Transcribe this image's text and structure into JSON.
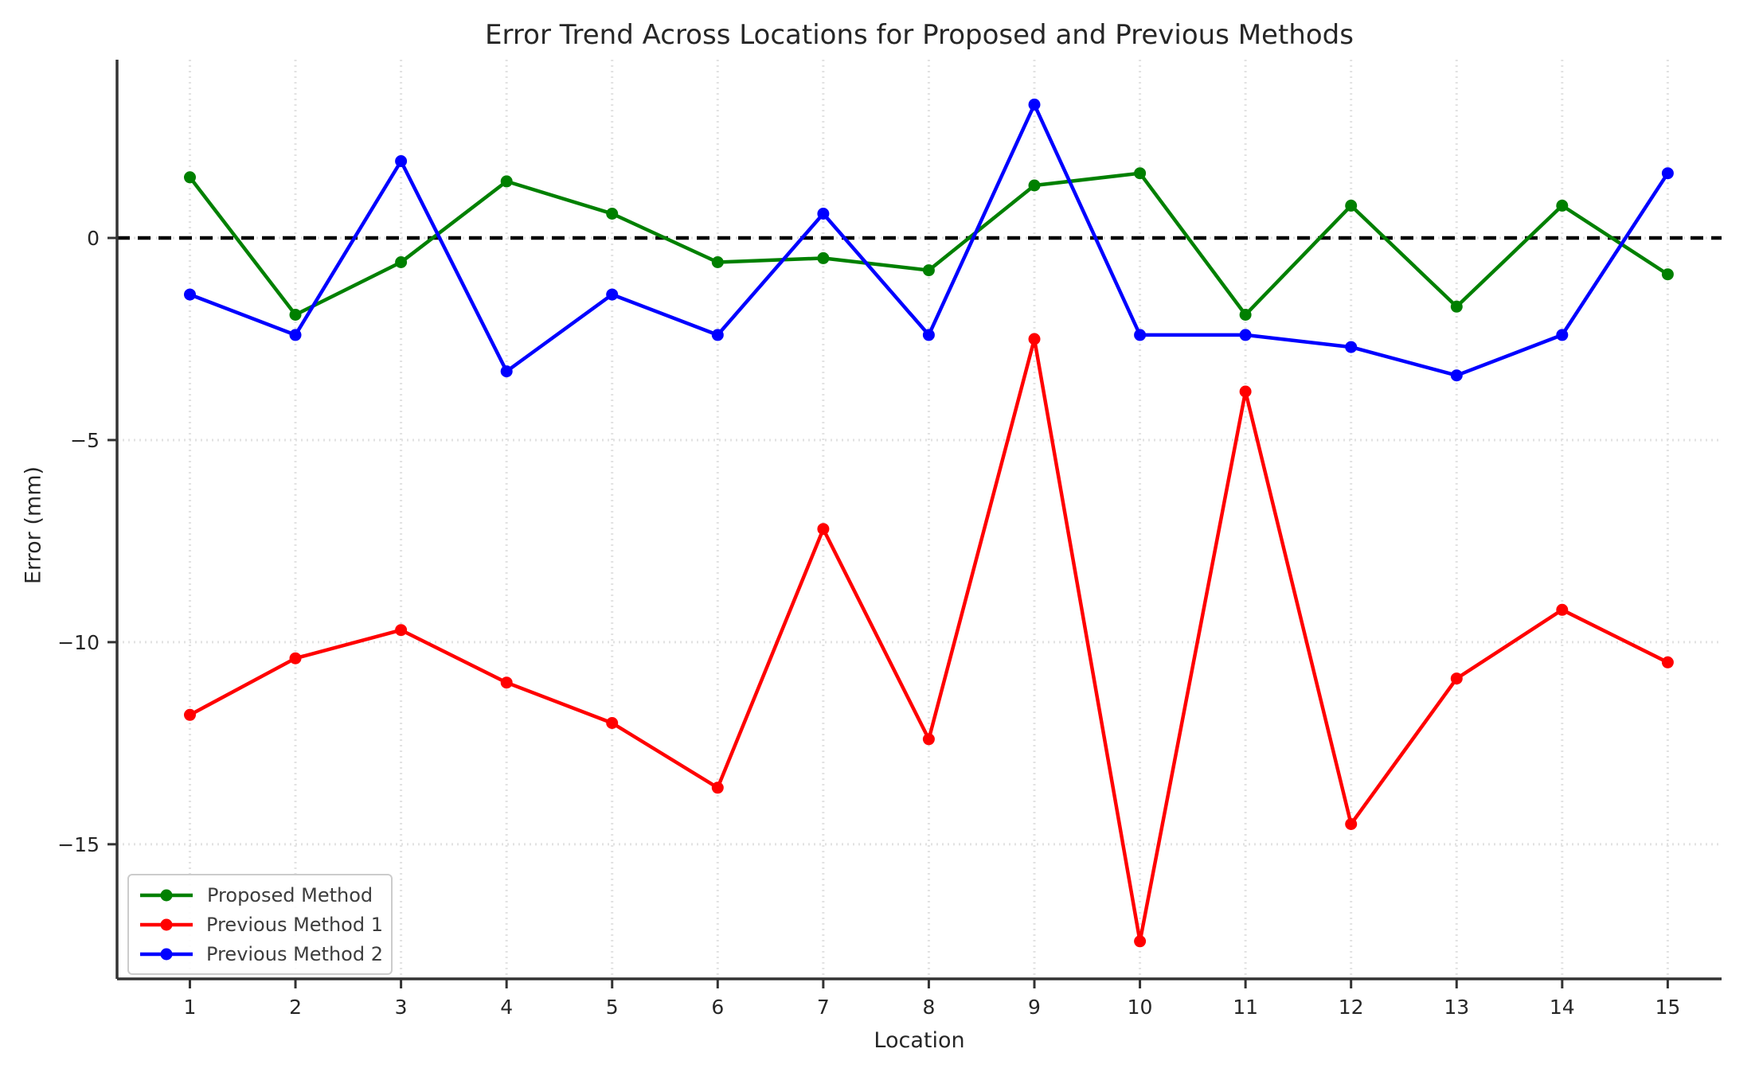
{
  "chart_data": {
    "type": "line",
    "title": "Error Trend Across Locations for Proposed and Previous Methods",
    "xlabel": "Location",
    "ylabel": "Error (mm)",
    "x": [
      1,
      2,
      3,
      4,
      5,
      6,
      7,
      8,
      9,
      10,
      11,
      12,
      13,
      14,
      15
    ],
    "xtick_labels": [
      "1",
      "2",
      "3",
      "4",
      "5",
      "6",
      "7",
      "8",
      "9",
      "10",
      "11",
      "12",
      "13",
      "14",
      "15"
    ],
    "ytick_values": [
      0,
      -5,
      -10,
      -15
    ],
    "ytick_labels": [
      "0",
      "−5",
      "−10",
      "−15"
    ],
    "xlim": [
      0.31,
      15.51
    ],
    "ylim": [
      -18.33,
      4.41
    ],
    "grid": true,
    "legend_position": "lower left",
    "zero_line": {
      "value": 0,
      "style": "dashed",
      "color": "#000000"
    },
    "series": [
      {
        "name": "Proposed Method",
        "color": "#008000",
        "marker": "circle",
        "values": [
          1.5,
          -1.9,
          -0.6,
          1.4,
          0.6,
          -0.6,
          -0.5,
          -0.8,
          1.3,
          1.6,
          -1.9,
          0.8,
          -1.7,
          0.8,
          -0.9
        ]
      },
      {
        "name": "Previous Method 1",
        "color": "#ff0000",
        "marker": "circle",
        "values": [
          -11.8,
          -10.4,
          -9.7,
          -11.0,
          -12.0,
          -13.6,
          -7.2,
          -12.4,
          -2.5,
          -17.4,
          -3.8,
          -14.5,
          -10.9,
          -9.2,
          -10.5
        ]
      },
      {
        "name": "Previous Method 2",
        "color": "#0000ff",
        "marker": "circle",
        "values": [
          -1.4,
          -2.4,
          1.9,
          -3.3,
          -1.4,
          -2.4,
          0.6,
          -2.4,
          3.3,
          -2.4,
          -2.4,
          -2.7,
          -3.4,
          -2.4,
          1.6
        ]
      }
    ],
    "style": {
      "grid_color": "#e2e2e2",
      "spine_color": "#333333",
      "tick_text_color": "#262626"
    }
  }
}
